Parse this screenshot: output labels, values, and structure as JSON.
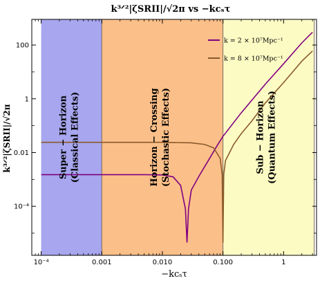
{
  "chart_data": {
    "type": "line",
    "title": "k³ᐟ²|ζSRII|/√2π vs −kcₛτ",
    "xlabel": "−kcₛτ",
    "ylabel": "k³ᐟ²|ζSRII|/√2π",
    "xscale": "log",
    "yscale": "log",
    "xlim": [
      7e-05,
      3.5
    ],
    "ylim": [
      1.5e-06,
      900
    ],
    "x_ticks": [
      {
        "v": 0.0001,
        "label": "10⁻⁴"
      },
      {
        "v": 0.001,
        "label": "0.001"
      },
      {
        "v": 0.01,
        "label": "0.010"
      },
      {
        "v": 0.1,
        "label": "0.100"
      },
      {
        "v": 1,
        "label": "1"
      }
    ],
    "y_ticks": [
      {
        "v": 0.0001,
        "label": "10⁻⁴"
      },
      {
        "v": 0.01,
        "label": "0.01"
      },
      {
        "v": 1,
        "label": "1"
      },
      {
        "v": 100,
        "label": "100"
      }
    ],
    "regions": [
      {
        "x0": 0.0001,
        "x1": 0.001,
        "color": "#a7a6ee",
        "line1": "Super − Horizon",
        "line2": "(Classical Effects)"
      },
      {
        "x0": 0.001,
        "x1": 0.1,
        "color": "#fbbf89",
        "line1": "Horizon − Crossing",
        "line2": "(Stochastic Effects)"
      },
      {
        "x0": 0.1,
        "x1": 3.2,
        "color": "#fdfbc4",
        "line1": "Sub − Horizon",
        "line2": "(Quantum Effects)"
      }
    ],
    "series": [
      {
        "name": "k = 2 × 10⁷Mpc⁻¹",
        "color": "#800080",
        "points": [
          [
            0.0001,
            0.0015
          ],
          [
            0.001,
            0.0015
          ],
          [
            0.005,
            0.0015
          ],
          [
            0.01,
            0.00147
          ],
          [
            0.015,
            0.00125
          ],
          [
            0.02,
            0.0006
          ],
          [
            0.024,
            8e-05
          ],
          [
            0.0255,
            4.5e-06
          ],
          [
            0.027,
            8e-05
          ],
          [
            0.03,
            0.0004
          ],
          [
            0.04,
            0.0013
          ],
          [
            0.06,
            0.006
          ],
          [
            0.08,
            0.018
          ],
          [
            0.1,
            0.04
          ],
          [
            0.2,
            0.3
          ],
          [
            0.5,
            3.5
          ],
          [
            1,
            20
          ],
          [
            2,
            120
          ],
          [
            3,
            300
          ]
        ]
      },
      {
        "name": "k = 8 × 10⁷Mpc⁻¹",
        "color": "#8a5a2b",
        "points": [
          [
            0.0001,
            0.024
          ],
          [
            0.001,
            0.024
          ],
          [
            0.01,
            0.024
          ],
          [
            0.03,
            0.023
          ],
          [
            0.05,
            0.02
          ],
          [
            0.07,
            0.015
          ],
          [
            0.09,
            0.006
          ],
          [
            0.097,
            0.0015
          ],
          [
            0.1,
            4.5e-06
          ],
          [
            0.103,
            0.0015
          ],
          [
            0.11,
            0.005
          ],
          [
            0.15,
            0.02
          ],
          [
            0.2,
            0.05
          ],
          [
            0.3,
            0.15
          ],
          [
            0.5,
            0.7
          ],
          [
            1,
            4
          ],
          [
            2,
            25
          ],
          [
            3,
            60
          ]
        ]
      }
    ]
  }
}
